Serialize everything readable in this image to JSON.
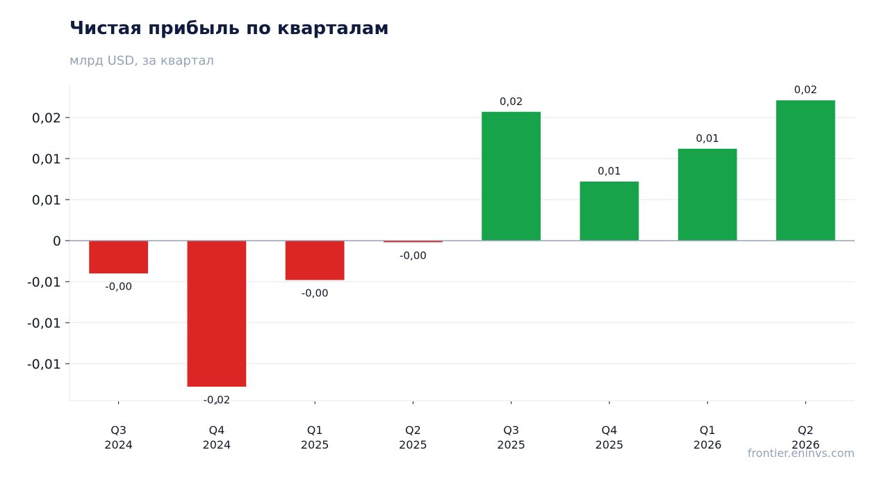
{
  "chart_data": {
    "type": "bar",
    "title": "Чистая прибыль по кварталам",
    "subtitle": "млрд USD, за квартал",
    "xlabel": "",
    "ylabel": "",
    "categories": [
      [
        "Q3",
        "2024"
      ],
      [
        "Q4",
        "2024"
      ],
      [
        "Q1",
        "2025"
      ],
      [
        "Q2",
        "2025"
      ],
      [
        "Q3",
        "2025"
      ],
      [
        "Q4",
        "2025"
      ],
      [
        "Q1",
        "2026"
      ],
      [
        "Q2",
        "2026"
      ]
    ],
    "values": [
      -0.004,
      -0.0178,
      -0.0048,
      -0.0002,
      0.0157,
      0.0072,
      0.0112,
      0.0171
    ],
    "data_labels": [
      "-0,00",
      "-0,02",
      "-0,00",
      "-0,00",
      "0,02",
      "0,01",
      "0,01",
      "0,02"
    ],
    "ylim": [
      -0.0195,
      0.0189
    ],
    "yticks": [
      {
        "value": -0.015,
        "label": "-0,01"
      },
      {
        "value": -0.01,
        "label": "-0,01"
      },
      {
        "value": -0.005,
        "label": "-0,01"
      },
      {
        "value": 0,
        "label": "0"
      },
      {
        "value": 0.005,
        "label": "0,01"
      },
      {
        "value": 0.01,
        "label": "0,01"
      },
      {
        "value": 0.015,
        "label": "0,02"
      }
    ],
    "colors": {
      "positive": "#16a34a",
      "negative": "#dc2626",
      "grid": "#e2e8f0",
      "zero_line": "#94a3b8"
    },
    "grid": true,
    "legend": "none"
  },
  "footer": "frontier.eninvs.com"
}
